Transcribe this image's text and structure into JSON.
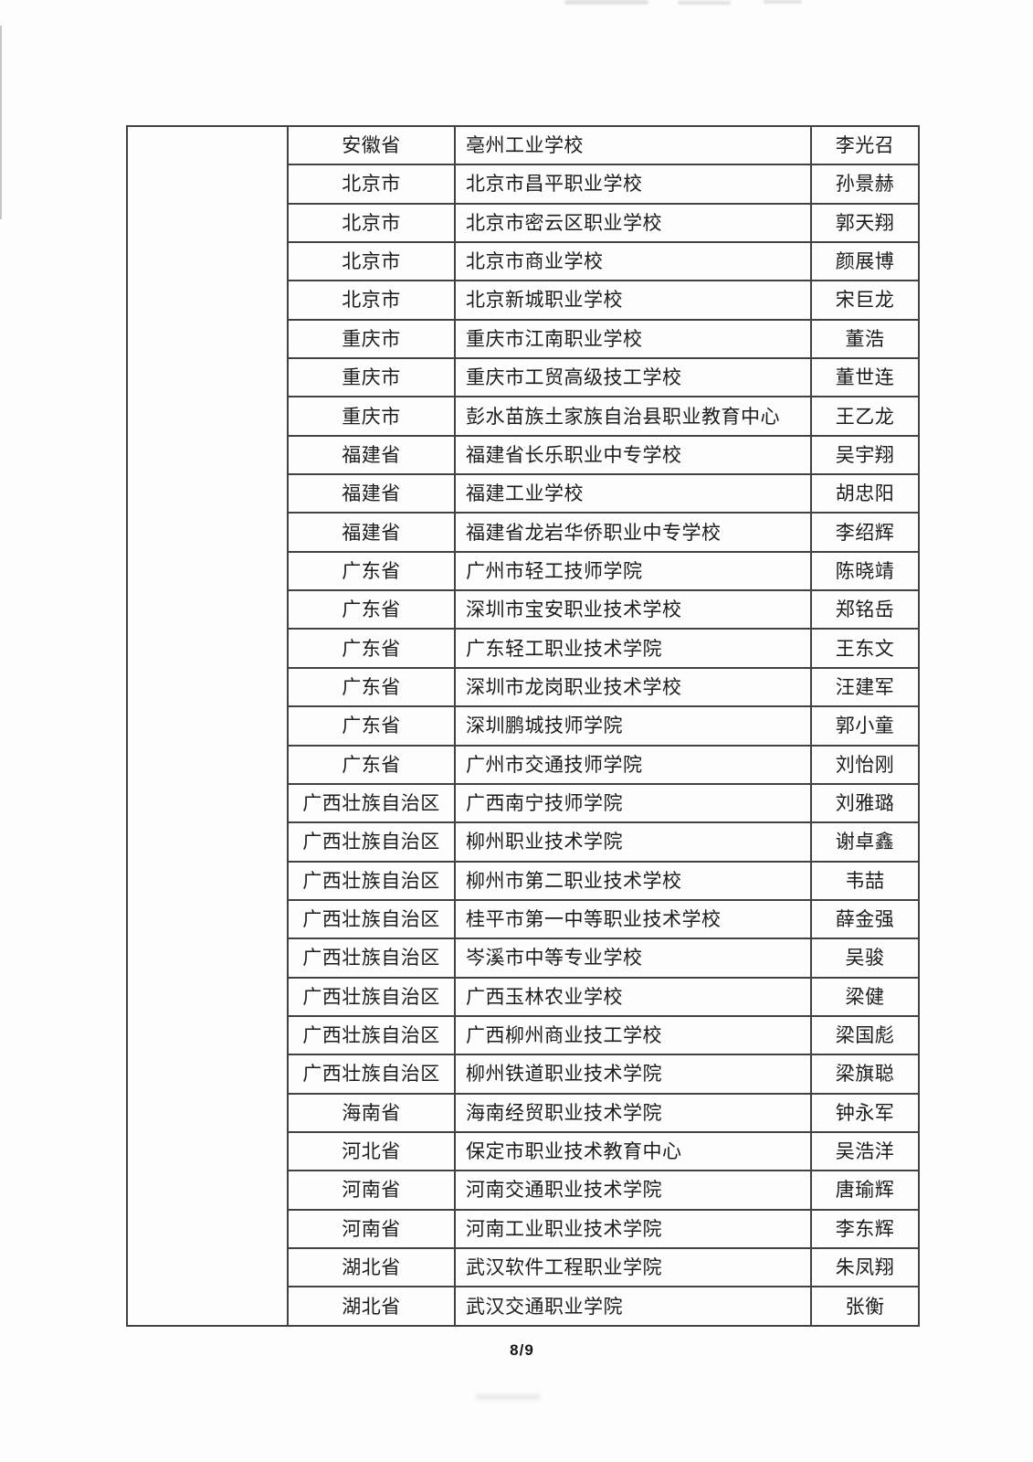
{
  "document": {
    "footer_page": "8/9"
  },
  "colors": {
    "page_background": "#fdfdfd",
    "table_border": "#424242",
    "text": "#1c1c1c"
  },
  "table": {
    "columns": [
      "category",
      "province",
      "school",
      "name"
    ],
    "rows": [
      {
        "province": "安徽省",
        "school": "亳州工业学校",
        "name": "李光召"
      },
      {
        "province": "北京市",
        "school": "北京市昌平职业学校",
        "name": "孙景赫"
      },
      {
        "province": "北京市",
        "school": "北京市密云区职业学校",
        "name": "郭天翔"
      },
      {
        "province": "北京市",
        "school": "北京市商业学校",
        "name": "颜展博"
      },
      {
        "province": "北京市",
        "school": "北京新城职业学校",
        "name": "宋巨龙"
      },
      {
        "province": "重庆市",
        "school": "重庆市江南职业学校",
        "name": "董浩"
      },
      {
        "province": "重庆市",
        "school": "重庆市工贸高级技工学校",
        "name": "董世连"
      },
      {
        "province": "重庆市",
        "school": "彭水苗族土家族自治县职业教育中心",
        "name": "王乙龙"
      },
      {
        "province": "福建省",
        "school": "福建省长乐职业中专学校",
        "name": "吴宇翔"
      },
      {
        "province": "福建省",
        "school": "福建工业学校",
        "name": "胡忠阳"
      },
      {
        "province": "福建省",
        "school": "福建省龙岩华侨职业中专学校",
        "name": "李绍辉"
      },
      {
        "province": "广东省",
        "school": "广州市轻工技师学院",
        "name": "陈晓靖"
      },
      {
        "province": "广东省",
        "school": "深圳市宝安职业技术学校",
        "name": "郑铭岳"
      },
      {
        "province": "广东省",
        "school": "广东轻工职业技术学院",
        "name": "王东文"
      },
      {
        "province": "广东省",
        "school": "深圳市龙岗职业技术学校",
        "name": "汪建军"
      },
      {
        "province": "广东省",
        "school": "深圳鹏城技师学院",
        "name": "郭小童"
      },
      {
        "province": "广东省",
        "school": "广州市交通技师学院",
        "name": "刘怡刚"
      },
      {
        "province": "广西壮族自治区",
        "school": "广西南宁技师学院",
        "name": "刘雅璐"
      },
      {
        "province": "广西壮族自治区",
        "school": "柳州职业技术学院",
        "name": "谢卓鑫"
      },
      {
        "province": "广西壮族自治区",
        "school": "柳州市第二职业技术学校",
        "name": "韦喆"
      },
      {
        "province": "广西壮族自治区",
        "school": "桂平市第一中等职业技术学校",
        "name": "薛金强"
      },
      {
        "province": "广西壮族自治区",
        "school": "岑溪市中等专业学校",
        "name": "吴骏"
      },
      {
        "province": "广西壮族自治区",
        "school": "广西玉林农业学校",
        "name": "梁健"
      },
      {
        "province": "广西壮族自治区",
        "school": "广西柳州商业技工学校",
        "name": "梁国彪"
      },
      {
        "province": "广西壮族自治区",
        "school": "柳州铁道职业技术学院",
        "name": "梁旗聪"
      },
      {
        "province": "海南省",
        "school": "海南经贸职业技术学院",
        "name": "钟永军"
      },
      {
        "province": "河北省",
        "school": "保定市职业技术教育中心",
        "name": "吴浩洋"
      },
      {
        "province": "河南省",
        "school": "河南交通职业技术学院",
        "name": "唐瑜辉"
      },
      {
        "province": "河南省",
        "school": "河南工业职业技术学院",
        "name": "李东辉"
      },
      {
        "province": "湖北省",
        "school": "武汉软件工程职业学院",
        "name": "朱凤翔"
      },
      {
        "province": "湖北省",
        "school": "武汉交通职业学院",
        "name": "张衡"
      }
    ]
  }
}
